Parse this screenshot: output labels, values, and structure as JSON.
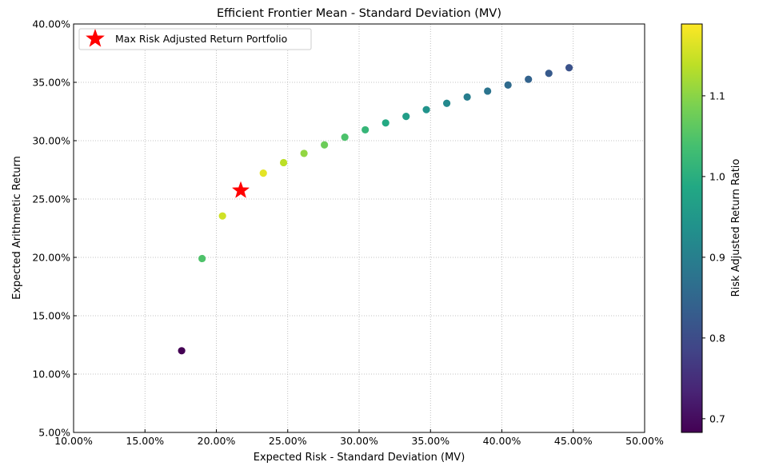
{
  "chart_data": {
    "type": "scatter",
    "title": "Efficient Frontier Mean - Standard Deviation (MV)",
    "xlabel": "Expected Risk - Standard Deviation (MV)",
    "ylabel": "Expected Arithmetic Return",
    "xlim": [
      0.1,
      0.5
    ],
    "ylim": [
      0.05,
      0.4
    ],
    "x_ticks": [
      {
        "value": 0.1,
        "label": "10.00%"
      },
      {
        "value": 0.15,
        "label": "15.00%"
      },
      {
        "value": 0.2,
        "label": "20.00%"
      },
      {
        "value": 0.25,
        "label": "25.00%"
      },
      {
        "value": 0.3,
        "label": "30.00%"
      },
      {
        "value": 0.35,
        "label": "35.00%"
      },
      {
        "value": 0.4,
        "label": "40.00%"
      },
      {
        "value": 0.45,
        "label": "45.00%"
      },
      {
        "value": 0.5,
        "label": "50.00%"
      }
    ],
    "y_ticks": [
      {
        "value": 0.05,
        "label": "5.00%"
      },
      {
        "value": 0.1,
        "label": "10.00%"
      },
      {
        "value": 0.15,
        "label": "15.00%"
      },
      {
        "value": 0.2,
        "label": "20.00%"
      },
      {
        "value": 0.25,
        "label": "25.00%"
      },
      {
        "value": 0.3,
        "label": "30.00%"
      },
      {
        "value": 0.35,
        "label": "35.00%"
      },
      {
        "value": 0.4,
        "label": "40.00%"
      }
    ],
    "grid": true,
    "grid_style": "dotted",
    "points": [
      {
        "x": 0.1757,
        "y": 0.12,
        "ratio": 0.683
      },
      {
        "x": 0.19,
        "y": 0.199,
        "ratio": 1.047
      },
      {
        "x": 0.2043,
        "y": 0.2355,
        "ratio": 1.153
      },
      {
        "x": 0.2329,
        "y": 0.2722,
        "ratio": 1.169
      },
      {
        "x": 0.2471,
        "y": 0.2812,
        "ratio": 1.138
      },
      {
        "x": 0.2614,
        "y": 0.2891,
        "ratio": 1.106
      },
      {
        "x": 0.2757,
        "y": 0.2964,
        "ratio": 1.075
      },
      {
        "x": 0.29,
        "y": 0.303,
        "ratio": 1.045
      },
      {
        "x": 0.3043,
        "y": 0.3093,
        "ratio": 1.016
      },
      {
        "x": 0.3186,
        "y": 0.3152,
        "ratio": 0.989
      },
      {
        "x": 0.3329,
        "y": 0.3208,
        "ratio": 0.964
      },
      {
        "x": 0.3471,
        "y": 0.3266,
        "ratio": 0.941
      },
      {
        "x": 0.3614,
        "y": 0.332,
        "ratio": 0.919
      },
      {
        "x": 0.3757,
        "y": 0.3374,
        "ratio": 0.898
      },
      {
        "x": 0.39,
        "y": 0.3425,
        "ratio": 0.878
      },
      {
        "x": 0.4043,
        "y": 0.3477,
        "ratio": 0.86
      },
      {
        "x": 0.4186,
        "y": 0.3526,
        "ratio": 0.842
      },
      {
        "x": 0.4329,
        "y": 0.3577,
        "ratio": 0.826
      },
      {
        "x": 0.4471,
        "y": 0.3625,
        "ratio": 0.811
      }
    ],
    "highlight": {
      "label": "Max Risk Adjusted Return Portfolio",
      "x": 0.2171,
      "y": 0.2573,
      "color": "#ff0000",
      "marker": "star"
    },
    "legend_placement": "top-left",
    "colorbar": {
      "label": "Risk Adjusted Return Ratio",
      "range": [
        0.683,
        1.189
      ],
      "colormap": "viridis",
      "ticks": [
        {
          "value": 0.7,
          "label": "0.7"
        },
        {
          "value": 0.8,
          "label": "0.8"
        },
        {
          "value": 0.9,
          "label": "0.9"
        },
        {
          "value": 1.0,
          "label": "1.0"
        },
        {
          "value": 1.1,
          "label": "1.1"
        }
      ]
    }
  }
}
